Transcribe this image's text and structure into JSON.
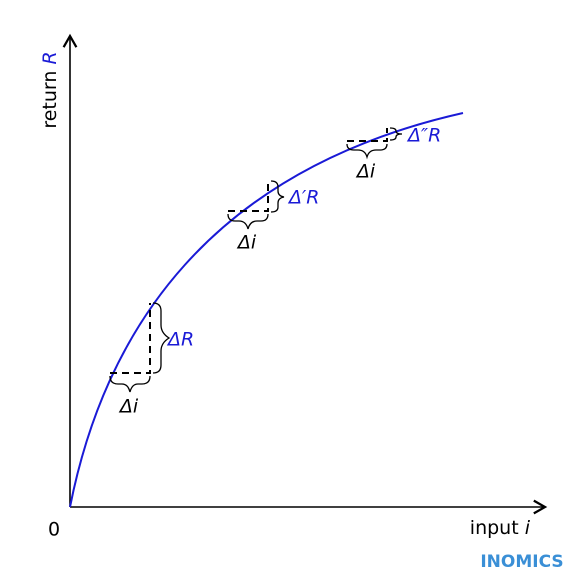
{
  "axes": {
    "y_label": "return",
    "y_var": "R",
    "x_label": "input",
    "x_var": "i",
    "origin": "0"
  },
  "steps": [
    {
      "rise_label": "ΔR",
      "run_label": "Δi"
    },
    {
      "rise_label": "Δ′R",
      "run_label": "Δi"
    },
    {
      "rise_label": "Δ″R",
      "run_label": "Δi"
    }
  ],
  "brand": "INOMICS"
}
